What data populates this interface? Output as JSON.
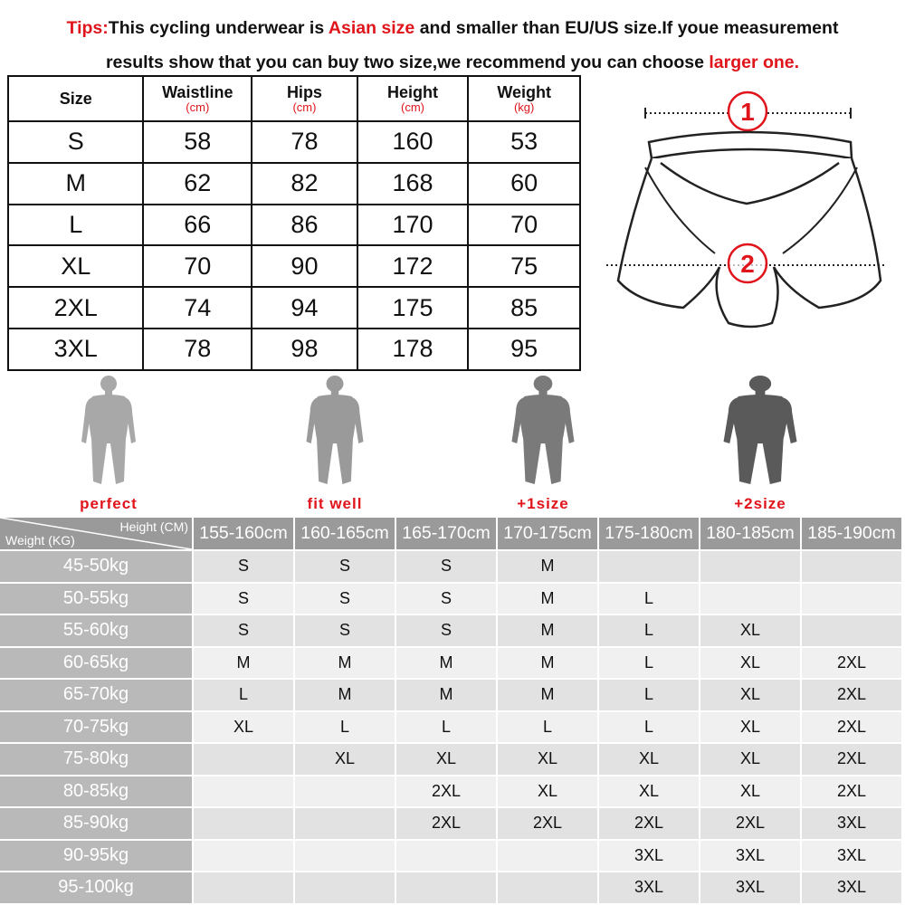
{
  "tips": {
    "line1": [
      {
        "t": "Tips:",
        "red": true
      },
      {
        "t": "This cycling underwear is ",
        "red": false
      },
      {
        "t": "Asian size",
        "red": true
      },
      {
        "t": " and smaller than EU/US size.If youe measurement",
        "red": false
      }
    ],
    "line2": [
      {
        "t": "results show that you can buy two size,we recommend you can choose ",
        "red": false
      },
      {
        "t": "larger one.",
        "red": true
      }
    ]
  },
  "size_table": {
    "headers": [
      {
        "label": "Size",
        "unit": ""
      },
      {
        "label": "Waistline",
        "unit": "(cm)"
      },
      {
        "label": "Hips",
        "unit": "(cm)"
      },
      {
        "label": "Height",
        "unit": "(cm)"
      },
      {
        "label": "Weight",
        "unit": "(kg)"
      }
    ],
    "rows": [
      [
        "S",
        "58",
        "78",
        "160",
        "53"
      ],
      [
        "M",
        "62",
        "82",
        "168",
        "60"
      ],
      [
        "L",
        "66",
        "86",
        "170",
        "70"
      ],
      [
        "XL",
        "70",
        "90",
        "172",
        "75"
      ],
      [
        "2XL",
        "74",
        "94",
        "175",
        "85"
      ],
      [
        "3XL",
        "78",
        "98",
        "178",
        "95"
      ]
    ]
  },
  "diagram": {
    "markers": [
      "1",
      "2"
    ]
  },
  "figures": [
    {
      "label": "perfect",
      "shade": "#a8a8a8",
      "width": 1
    },
    {
      "label": "fit well",
      "shade": "#9a9a9a",
      "width": 1.05
    },
    {
      "label": "+1size",
      "shade": "#7a7a7a",
      "width": 1.15
    },
    {
      "label": "+2size",
      "shade": "#5a5a5a",
      "width": 1.35
    }
  ],
  "fit_grid": {
    "corner_top": "Height (CM)",
    "corner_bottom": "Weight (KG)",
    "heights": [
      "155-160cm",
      "160-165cm",
      "165-170cm",
      "170-175cm",
      "175-180cm",
      "180-185cm",
      "185-190cm"
    ],
    "rows": [
      {
        "weight": "45-50kg",
        "sizes": [
          "S",
          "S",
          "S",
          "M",
          "",
          "",
          ""
        ]
      },
      {
        "weight": "50-55kg",
        "sizes": [
          "S",
          "S",
          "S",
          "M",
          "L",
          "",
          ""
        ]
      },
      {
        "weight": "55-60kg",
        "sizes": [
          "S",
          "S",
          "S",
          "M",
          "L",
          "XL",
          ""
        ]
      },
      {
        "weight": "60-65kg",
        "sizes": [
          "M",
          "M",
          "M",
          "M",
          "L",
          "XL",
          "2XL"
        ]
      },
      {
        "weight": "65-70kg",
        "sizes": [
          "L",
          "M",
          "M",
          "M",
          "L",
          "XL",
          "2XL"
        ]
      },
      {
        "weight": "70-75kg",
        "sizes": [
          "XL",
          "L",
          "L",
          "L",
          "L",
          "XL",
          "2XL"
        ]
      },
      {
        "weight": "75-80kg",
        "sizes": [
          "",
          "XL",
          "XL",
          "XL",
          "XL",
          "XL",
          "2XL"
        ]
      },
      {
        "weight": "80-85kg",
        "sizes": [
          "",
          "",
          "2XL",
          "XL",
          "XL",
          "XL",
          "2XL"
        ]
      },
      {
        "weight": "85-90kg",
        "sizes": [
          "",
          "",
          "2XL",
          "2XL",
          "2XL",
          "2XL",
          "3XL"
        ]
      },
      {
        "weight": "90-95kg",
        "sizes": [
          "",
          "",
          "",
          "",
          "3XL",
          "3XL",
          "3XL"
        ]
      },
      {
        "weight": "95-100kg",
        "sizes": [
          "",
          "",
          "",
          "",
          "3XL",
          "3XL",
          "3XL"
        ]
      }
    ]
  }
}
